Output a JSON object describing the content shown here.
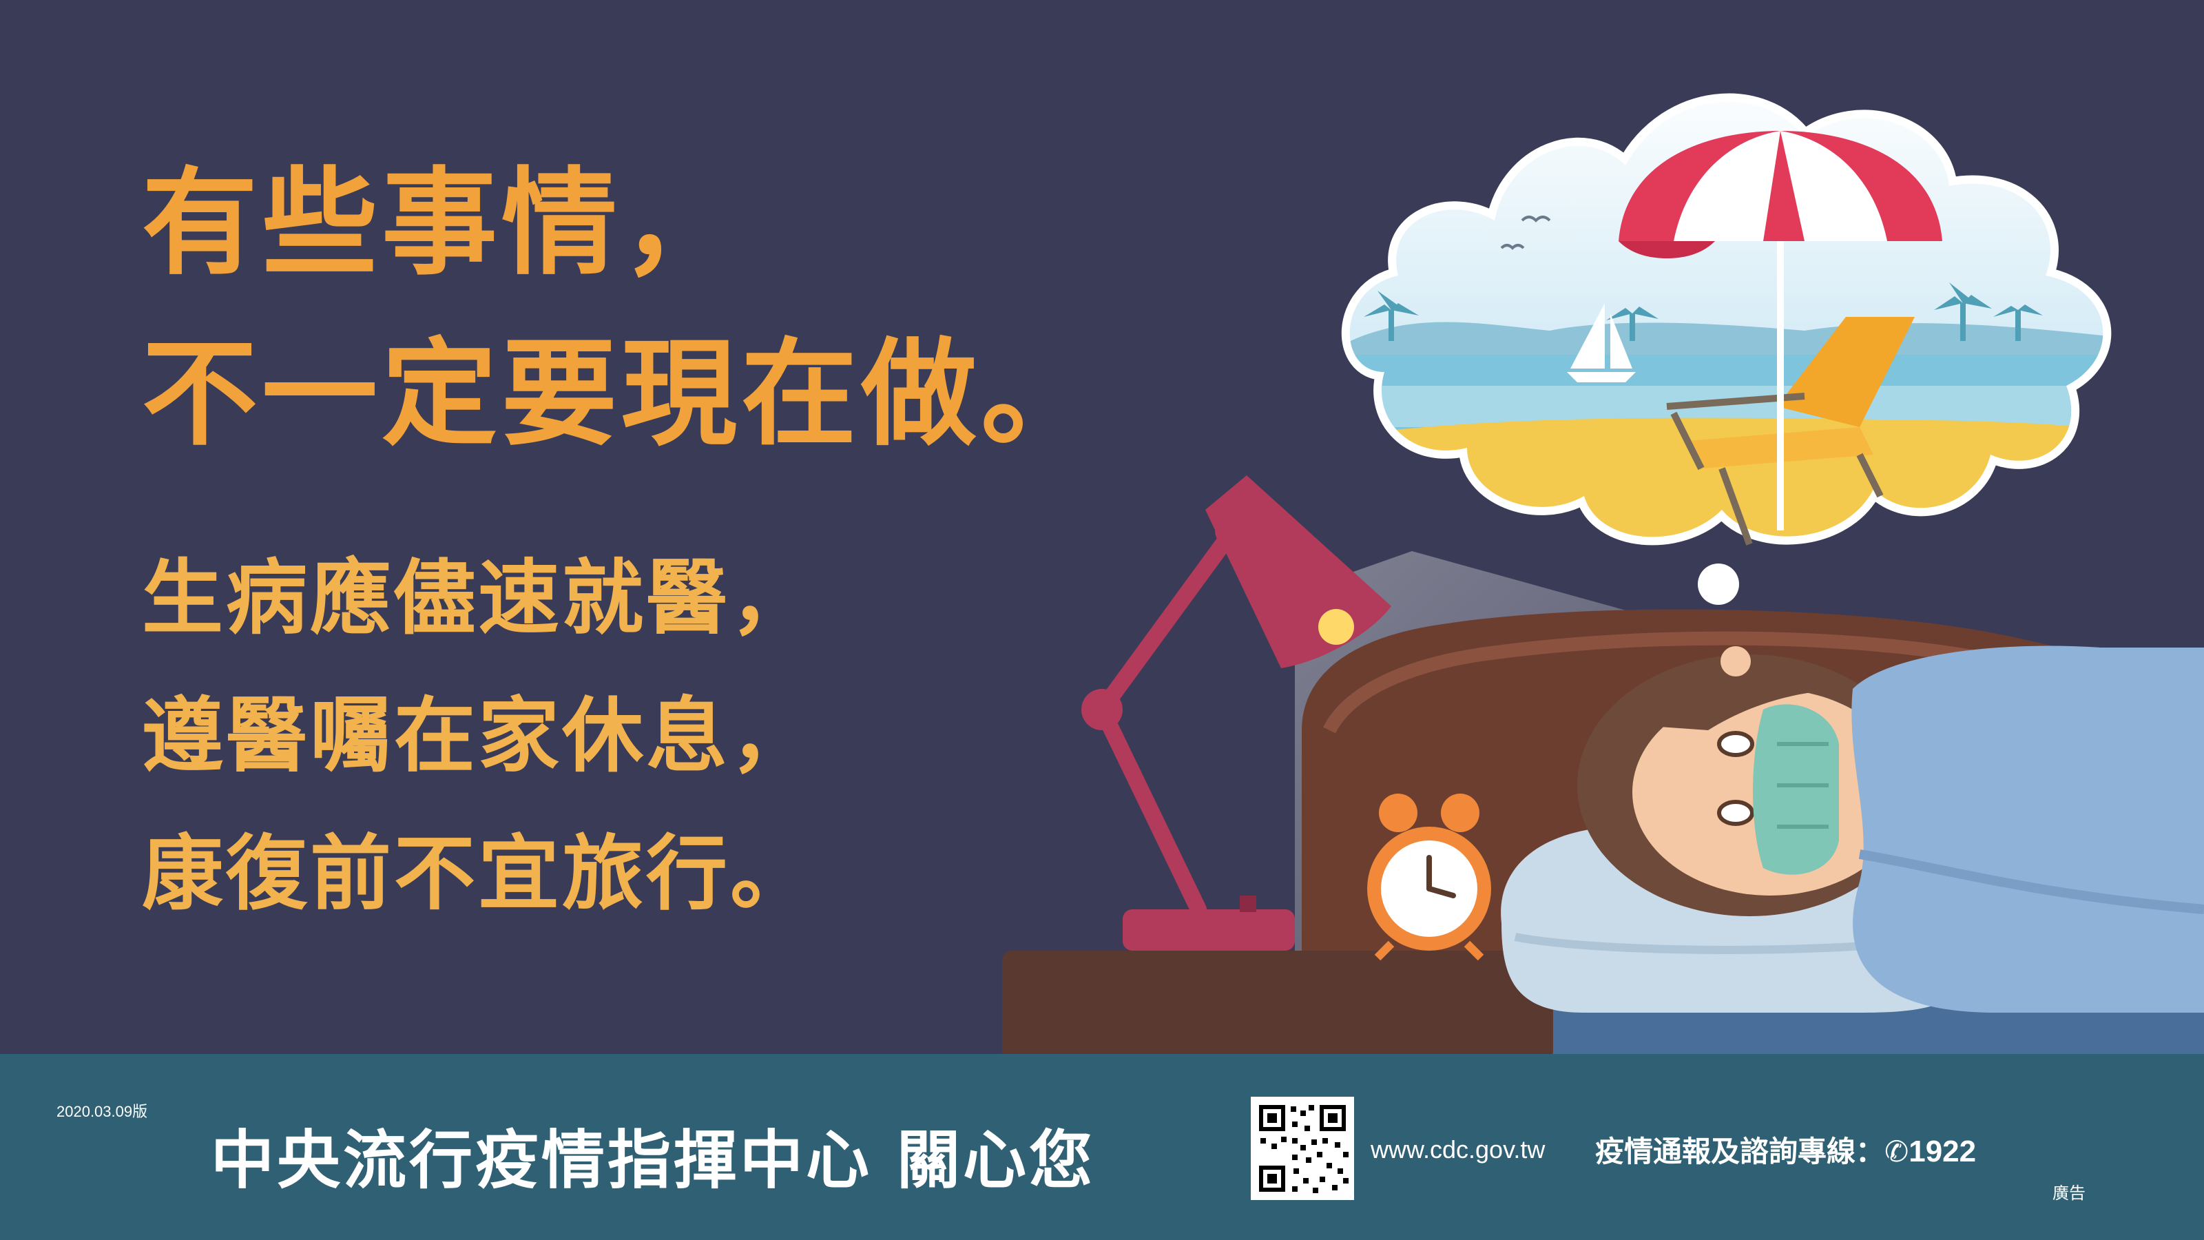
{
  "headline": {
    "line1": "有些事情，",
    "line2": "不一定要現在做。"
  },
  "body": {
    "line1": "生病應儘速就醫，",
    "line2": "遵醫囑在家休息，",
    "line3": "康復前不宜旅行。"
  },
  "footer": {
    "version": "2020.03.09版",
    "organization": "中央流行疫情指揮中心 關心您",
    "website": "www.cdc.gov.tw",
    "hotline_label": "疫情通報及諮詢專線：",
    "hotline_number": "1922",
    "ad_tag": "廣告"
  },
  "colors": {
    "background": "#3a3b56",
    "headline": "#f2a23a",
    "footer_bar": "#2f6073"
  },
  "icons": [
    "desk-lamp-icon",
    "alarm-clock-icon",
    "thought-bubble-icon",
    "beach-umbrella-icon",
    "deck-chair-icon",
    "sailboat-icon",
    "qr-code-icon",
    "phone-icon"
  ]
}
